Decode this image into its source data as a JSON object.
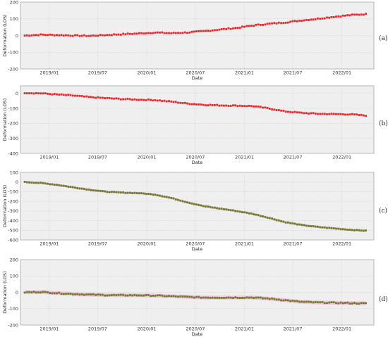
{
  "figure": {
    "panel_labels": [
      "(a)",
      "(b)",
      "(c)",
      "(d)"
    ]
  },
  "colors": {
    "plot_background": "#efefef",
    "grid": "#c8c8c8",
    "marker_red": "#e8242b",
    "marker_green": "#6a7a2a",
    "uncertainty_band": "#f7bfe0"
  },
  "chart_data": [
    {
      "panel": "(a)",
      "type": "scatter",
      "xlabel": "Date",
      "ylabel": "Deformation (LOS)",
      "xticks": [
        "2019/01",
        "2019/07",
        "2020/01",
        "2020/07",
        "2021/01",
        "2021/07",
        "2022/01"
      ],
      "xlim": [
        "2018-09-15",
        "2022-05-01"
      ],
      "yticks": [
        200,
        100,
        0,
        -100,
        -200
      ],
      "ylim": [
        -200,
        200
      ],
      "grid": true,
      "marker_color": "red",
      "band": false,
      "series": [
        {
          "x": [
            "2018-10-01",
            "2018-12-01",
            "2019-02-01",
            "2019-04-01",
            "2019-06-01",
            "2019-08-01",
            "2019-10-01",
            "2019-12-01",
            "2020-02-01",
            "2020-04-01",
            "2020-06-01",
            "2020-08-01",
            "2020-10-01",
            "2020-12-01",
            "2021-02-01",
            "2021-04-01",
            "2021-06-01",
            "2021-08-01",
            "2021-10-01",
            "2021-12-01",
            "2022-02-01",
            "2022-04-01"
          ],
          "y": [
            0,
            5,
            3,
            0,
            -2,
            3,
            8,
            12,
            18,
            14,
            18,
            26,
            36,
            45,
            60,
            70,
            78,
            90,
            100,
            112,
            122,
            128
          ]
        }
      ]
    },
    {
      "panel": "(b)",
      "type": "scatter",
      "xlabel": "Date",
      "ylabel": "Deformation (LOS)",
      "xticks": [
        "2019/01",
        "2019/07",
        "2020/01",
        "2020/07",
        "2021/01",
        "2021/07",
        "2022/01"
      ],
      "xlim": [
        "2018-09-15",
        "2022-05-01"
      ],
      "yticks": [
        0,
        -100,
        -200,
        -300,
        -400
      ],
      "ylim": [
        -400,
        50
      ],
      "grid": true,
      "marker_color": "red",
      "band": false,
      "series": [
        {
          "x": [
            "2018-10-01",
            "2018-12-01",
            "2019-02-01",
            "2019-04-01",
            "2019-06-01",
            "2019-08-01",
            "2019-10-01",
            "2019-12-01",
            "2020-02-01",
            "2020-04-01",
            "2020-06-01",
            "2020-08-01",
            "2020-10-01",
            "2020-12-01",
            "2021-02-01",
            "2021-04-01",
            "2021-06-01",
            "2021-08-01",
            "2021-10-01",
            "2021-12-01",
            "2022-02-01",
            "2022-04-01"
          ],
          "y": [
            3,
            0,
            -8,
            -15,
            -25,
            -32,
            -38,
            -42,
            -45,
            -55,
            -68,
            -76,
            -80,
            -82,
            -85,
            -100,
            -120,
            -130,
            -136,
            -138,
            -140,
            -148
          ]
        }
      ]
    },
    {
      "panel": "(c)",
      "type": "scatter",
      "xlabel": "Date",
      "ylabel": "Deformation (LOS)",
      "xticks": [
        "2019/01",
        "2019/07",
        "2020/01",
        "2020/07",
        "2021/01",
        "2021/07",
        "2022/01"
      ],
      "xlim": [
        "2018-09-15",
        "2022-05-01"
      ],
      "yticks": [
        100,
        0,
        -100,
        -200,
        -300,
        -400,
        -500,
        -600
      ],
      "ylim": [
        -600,
        100
      ],
      "grid": true,
      "marker_color": "green",
      "band": true,
      "series": [
        {
          "x": [
            "2018-10-01",
            "2018-12-01",
            "2019-02-01",
            "2019-04-01",
            "2019-06-01",
            "2019-08-01",
            "2019-10-01",
            "2019-12-01",
            "2020-02-01",
            "2020-04-01",
            "2020-06-01",
            "2020-08-01",
            "2020-10-01",
            "2020-12-01",
            "2021-02-01",
            "2021-04-01",
            "2021-06-01",
            "2021-08-01",
            "2021-10-01",
            "2021-12-01",
            "2022-02-01",
            "2022-04-01"
          ],
          "y": [
            0,
            -10,
            -30,
            -55,
            -80,
            -100,
            -110,
            -115,
            -130,
            -165,
            -210,
            -250,
            -275,
            -300,
            -330,
            -370,
            -415,
            -445,
            -465,
            -480,
            -495,
            -505
          ]
        }
      ]
    },
    {
      "panel": "(d)",
      "type": "scatter",
      "xlabel": "Date",
      "ylabel": "Deformation (LOS)",
      "xticks": [
        "2019/01",
        "2019/07",
        "2020/01",
        "2020/07",
        "2021/01",
        "2021/07",
        "2022/01"
      ],
      "xlim": [
        "2018-09-15",
        "2022-05-01"
      ],
      "yticks": [
        200,
        100,
        0,
        -100,
        -200
      ],
      "ylim": [
        -200,
        200
      ],
      "grid": true,
      "marker_color": "green",
      "band": true,
      "series": [
        {
          "x": [
            "2018-10-01",
            "2018-12-01",
            "2019-02-01",
            "2019-04-01",
            "2019-06-01",
            "2019-08-01",
            "2019-10-01",
            "2019-12-01",
            "2020-02-01",
            "2020-04-01",
            "2020-06-01",
            "2020-08-01",
            "2020-10-01",
            "2020-12-01",
            "2021-02-01",
            "2021-04-01",
            "2021-06-01",
            "2021-08-01",
            "2021-10-01",
            "2021-12-01",
            "2022-02-01",
            "2022-04-01"
          ],
          "y": [
            0,
            2,
            -5,
            -10,
            -14,
            -17,
            -18,
            -18,
            -20,
            -24,
            -28,
            -32,
            -32,
            -32,
            -32,
            -38,
            -48,
            -58,
            -62,
            -64,
            -66,
            -68
          ]
        }
      ]
    }
  ]
}
